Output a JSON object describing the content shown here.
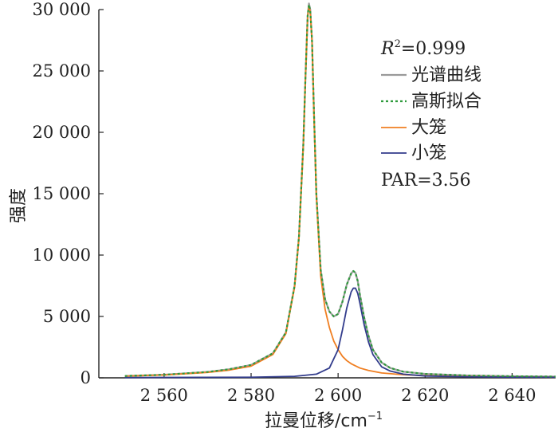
{
  "chart_data": {
    "type": "line",
    "title": "",
    "xlabel": "拉曼位移/cm",
    "xlabel_sup": "−1",
    "ylabel": "强度",
    "xlim": [
      2545,
      2650
    ],
    "ylim": [
      0,
      30000
    ],
    "x_ticks": [
      2560,
      2580,
      2600,
      2620,
      2640
    ],
    "x_tick_labels": [
      "2 560",
      "2 580",
      "2 600",
      "2 620",
      "2 640"
    ],
    "y_ticks": [
      0,
      5000,
      10000,
      15000,
      20000,
      25000,
      30000
    ],
    "y_tick_labels": [
      "0",
      "5 000",
      "10 000",
      "15 000",
      "20 000",
      "25 000",
      "30 000"
    ],
    "grid": false,
    "legend_position": "top-right",
    "annotations": {
      "r2_prefix": "R",
      "r2_sup": "2",
      "r2_value": "=0.999",
      "par": "PAR=3.56"
    },
    "colors": {
      "spectrum": "#9a9a9a",
      "fit": "#2e9a3c",
      "large_cage": "#f07f22",
      "small_cage": "#323c8c",
      "axis": "#222222"
    },
    "series": [
      {
        "name": "光谱曲线",
        "style": "solid",
        "x": [
          2551,
          2560,
          2570,
          2575,
          2580,
          2585,
          2588,
          2590,
          2591,
          2592,
          2592.5,
          2593,
          2593.3,
          2593.6,
          2594,
          2594.5,
          2595,
          2596,
          2597,
          2598,
          2599,
          2600,
          2601,
          2602,
          2603,
          2603.5,
          2604,
          2604.5,
          2605,
          2606,
          2607,
          2608,
          2610,
          2612,
          2615,
          2620,
          2630,
          2640,
          2650
        ],
        "y": [
          150,
          250,
          480,
          700,
          1050,
          2000,
          3700,
          7500,
          11500,
          19000,
          24500,
          29500,
          30500,
          30000,
          27500,
          21000,
          15000,
          8800,
          6400,
          5400,
          5000,
          5200,
          6200,
          7600,
          8500,
          8700,
          8550,
          7900,
          6800,
          4900,
          3400,
          2300,
          1250,
          800,
          500,
          320,
          190,
          130,
          100
        ]
      },
      {
        "name": "高斯拟合",
        "style": "dotted",
        "x": [
          2551,
          2560,
          2570,
          2575,
          2580,
          2585,
          2588,
          2590,
          2591,
          2592,
          2592.5,
          2593,
          2593.3,
          2593.6,
          2594,
          2594.5,
          2595,
          2596,
          2597,
          2598,
          2599,
          2600,
          2601,
          2602,
          2603,
          2603.5,
          2604,
          2604.5,
          2605,
          2606,
          2607,
          2608,
          2610,
          2612,
          2615,
          2620,
          2630,
          2640,
          2650
        ],
        "y": [
          150,
          250,
          480,
          700,
          1050,
          2000,
          3700,
          7500,
          11500,
          19000,
          24500,
          29500,
          30400,
          29900,
          27500,
          21000,
          15000,
          8800,
          6400,
          5400,
          5000,
          5200,
          6200,
          7600,
          8500,
          8700,
          8550,
          7900,
          6800,
          4900,
          3400,
          2300,
          1250,
          800,
          500,
          320,
          190,
          130,
          100
        ]
      },
      {
        "name": "大笼",
        "style": "solid",
        "x": [
          2551,
          2560,
          2570,
          2575,
          2580,
          2585,
          2588,
          2590,
          2591,
          2592,
          2592.5,
          2593,
          2593.3,
          2593.6,
          2594,
          2594.5,
          2595,
          2596,
          2597,
          2598,
          2599,
          2600,
          2601,
          2602,
          2603,
          2605,
          2607,
          2610,
          2615,
          2620,
          2630,
          2640,
          2650
        ],
        "y": [
          140,
          230,
          440,
          630,
          950,
          1900,
          3600,
          7400,
          11400,
          18900,
          24400,
          29400,
          30300,
          29800,
          27400,
          20800,
          14700,
          8300,
          5600,
          4100,
          3000,
          2300,
          1750,
          1400,
          1150,
          800,
          600,
          400,
          250,
          180,
          100,
          70,
          50
        ]
      },
      {
        "name": "小笼",
        "style": "solid",
        "x": [
          2551,
          2580,
          2590,
          2595,
          2598,
          2600,
          2601,
          2602,
          2603,
          2603.5,
          2604,
          2604.5,
          2605,
          2606,
          2607,
          2608,
          2610,
          2612,
          2615,
          2620,
          2630,
          2640,
          2650
        ],
        "y": [
          20,
          50,
          120,
          300,
          800,
          2300,
          3900,
          5700,
          7000,
          7300,
          7300,
          6900,
          6100,
          4300,
          2900,
          1900,
          900,
          550,
          300,
          150,
          80,
          60,
          50
        ]
      }
    ]
  }
}
